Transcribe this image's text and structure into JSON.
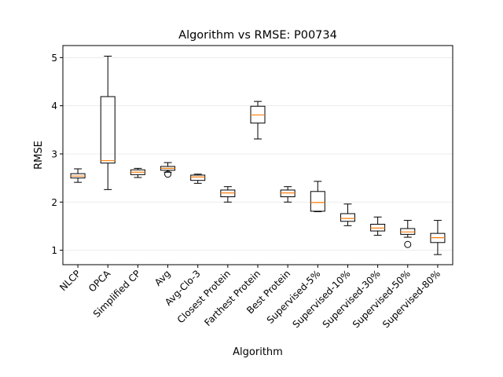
{
  "chart_data": {
    "type": "box",
    "title": "Algorithm vs RMSE: P00734",
    "xlabel": "Algorithm",
    "ylabel": "RMSE",
    "ylim": [
      0.7,
      5.25
    ],
    "yticks": [
      1,
      2,
      3,
      4,
      5
    ],
    "grid": "horizontal",
    "categories": [
      "NLCP",
      "OPCA",
      "Simplified CP",
      "Avg",
      "Avg-Clo-3",
      "Closest Protein",
      "Farthest Protein",
      "Best Protein",
      "Supervised-5%",
      "Supervised-10%",
      "Supervised-30%",
      "Supervised-50%",
      "Supervised-80%"
    ],
    "boxes": [
      {
        "whisker_low": 2.41,
        "q1": 2.5,
        "median": 2.54,
        "q3": 2.59,
        "whisker_high": 2.69,
        "outliers": []
      },
      {
        "whisker_low": 2.26,
        "q1": 2.81,
        "median": 2.86,
        "q3": 4.19,
        "whisker_high": 5.03,
        "outliers": []
      },
      {
        "whisker_low": 2.51,
        "q1": 2.57,
        "median": 2.62,
        "q3": 2.67,
        "whisker_high": 2.7,
        "outliers": []
      },
      {
        "whisker_low": 2.62,
        "q1": 2.66,
        "median": 2.7,
        "q3": 2.74,
        "whisker_high": 2.82,
        "outliers": [
          2.58
        ]
      },
      {
        "whisker_low": 2.39,
        "q1": 2.45,
        "median": 2.52,
        "q3": 2.56,
        "whisker_high": 2.58,
        "outliers": []
      },
      {
        "whisker_low": 2.0,
        "q1": 2.11,
        "median": 2.19,
        "q3": 2.25,
        "whisker_high": 2.32,
        "outliers": []
      },
      {
        "whisker_low": 3.31,
        "q1": 3.64,
        "median": 3.81,
        "q3": 3.99,
        "whisker_high": 4.09,
        "outliers": []
      },
      {
        "whisker_low": 2.0,
        "q1": 2.11,
        "median": 2.19,
        "q3": 2.25,
        "whisker_high": 2.32,
        "outliers": []
      },
      {
        "whisker_low": 1.8,
        "q1": 1.81,
        "median": 1.99,
        "q3": 2.22,
        "whisker_high": 2.43,
        "outliers": []
      },
      {
        "whisker_low": 1.51,
        "q1": 1.6,
        "median": 1.66,
        "q3": 1.76,
        "whisker_high": 1.96,
        "outliers": []
      },
      {
        "whisker_low": 1.31,
        "q1": 1.4,
        "median": 1.46,
        "q3": 1.54,
        "whisker_high": 1.69,
        "outliers": []
      },
      {
        "whisker_low": 1.27,
        "q1": 1.33,
        "median": 1.38,
        "q3": 1.45,
        "whisker_high": 1.62,
        "outliers": [
          1.12
        ]
      },
      {
        "whisker_low": 0.91,
        "q1": 1.16,
        "median": 1.26,
        "q3": 1.35,
        "whisker_high": 1.62,
        "outliers": []
      }
    ]
  },
  "colors": {
    "box": "#000000",
    "median": "#ff7f0e",
    "grid": "#e6e6e6"
  }
}
